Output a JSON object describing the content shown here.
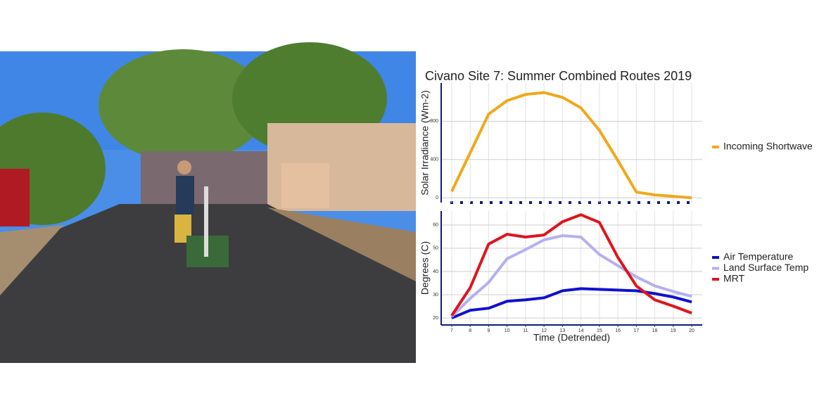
{
  "chart_data": [
    {
      "type": "line",
      "title": "Civano Site 7: Summer Combined Routes 2019",
      "y_label": "Solar Irradiance (Wm-2)",
      "x": [
        7,
        8,
        9,
        10,
        11,
        12,
        13,
        14,
        15,
        16,
        17,
        18,
        19,
        20
      ],
      "xlim": [
        6.43,
        20.57
      ],
      "ylim": [
        -50,
        1200
      ],
      "yticks": [
        0,
        400,
        800
      ],
      "grid": true,
      "legend": "right",
      "series": [
        {
          "name": "Incoming Shortwave",
          "color": "#f0a81c",
          "values": [
            66,
            470,
            875,
            1015,
            1080,
            1100,
            1050,
            940,
            705,
            390,
            60,
            30,
            15,
            0
          ]
        }
      ]
    },
    {
      "type": "line",
      "y_label": "Degrees (C)",
      "x_label": "Time (Detrended)",
      "x": [
        7,
        8,
        9,
        10,
        11,
        12,
        13,
        14,
        15,
        16,
        17,
        18,
        19,
        20
      ],
      "xlim": [
        6.43,
        20.57
      ],
      "ylim": [
        17,
        66
      ],
      "xticks": [
        7,
        8,
        9,
        10,
        11,
        12,
        13,
        14,
        15,
        16,
        17,
        18,
        19,
        20
      ],
      "yticks": [
        20,
        30,
        40,
        50,
        60
      ],
      "grid": true,
      "legend": "right",
      "series": [
        {
          "name": "Air Temperature",
          "color": "#1010d0",
          "values": [
            20,
            23.3,
            24.2,
            27.2,
            27.8,
            28.7,
            31.7,
            32.6,
            32.3,
            32,
            31.7,
            30.5,
            29,
            26.9
          ]
        },
        {
          "name": "Land Surface Temp",
          "color": "#b4b0f0",
          "values": [
            20.6,
            28.4,
            35.3,
            45.5,
            49.4,
            53.6,
            55.4,
            54.8,
            47.3,
            42.5,
            37.7,
            33.8,
            31.4,
            29.3
          ]
        },
        {
          "name": "MRT",
          "color": "#e0141c",
          "values": [
            21,
            33,
            51.8,
            56,
            54.8,
            55.7,
            61.4,
            64.4,
            61.1,
            46.1,
            33.8,
            27.8,
            25.1,
            22.1
          ]
        }
      ]
    }
  ]
}
